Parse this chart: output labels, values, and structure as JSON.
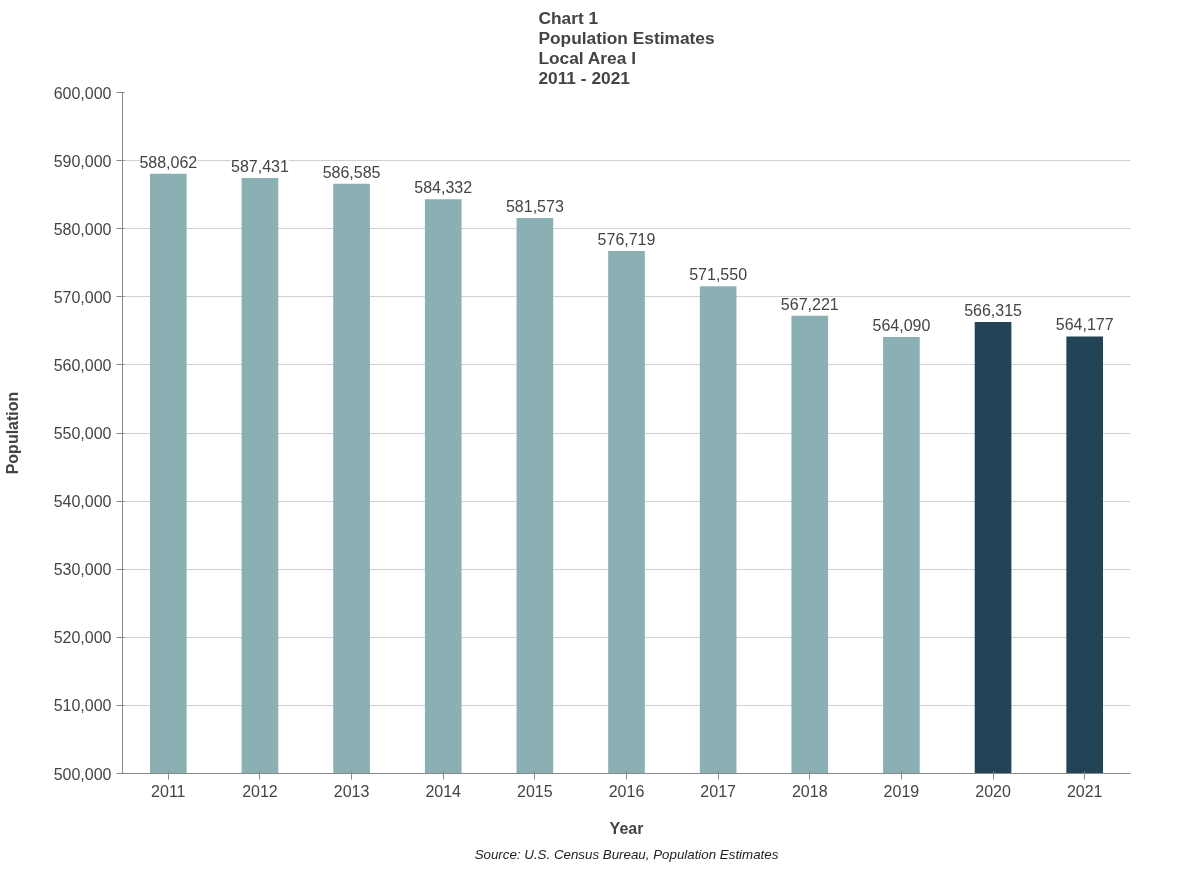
{
  "chart_data": {
    "type": "bar",
    "title": "Chart 1\nPopulation Estimates\nLocal Area I\n2011 - 2021",
    "xlabel": "Year",
    "ylabel": "Population",
    "annotations": [
      "Source: U.S. Census Bureau, Population Estimates"
    ],
    "categories": [
      "2011",
      "2012",
      "2013",
      "2014",
      "2015",
      "2016",
      "2017",
      "2018",
      "2019",
      "2020",
      "2021"
    ],
    "values": [
      588062,
      587431,
      586585,
      584332,
      581573,
      576719,
      571550,
      567221,
      564090,
      566315,
      564177
    ],
    "colors": [
      "#8ab0b4",
      "#8ab0b4",
      "#8ab0b4",
      "#8ab0b4",
      "#8ab0b4",
      "#8ab0b4",
      "#8ab0b4",
      "#8ab0b4",
      "#8ab0b4",
      "#234456",
      "#234456"
    ],
    "ylim": [
      500000,
      600000
    ],
    "yticks": [
      {
        "value": 500000,
        "label": "500,000"
      },
      {
        "value": 510000,
        "label": "510,000"
      },
      {
        "value": 520000,
        "label": "520,000"
      },
      {
        "value": 530000,
        "label": "530,000"
      },
      {
        "value": 540000,
        "label": "540,000"
      },
      {
        "value": 550000,
        "label": "550,000"
      },
      {
        "value": 560000,
        "label": "560,000"
      },
      {
        "value": 570000,
        "label": "570,000"
      },
      {
        "value": 580000,
        "label": "580,000"
      },
      {
        "value": 590000,
        "label": "590,000"
      },
      {
        "value": 600000,
        "label": "600,000"
      }
    ],
    "value_labels": [
      "588,062",
      "587,431",
      "586,585",
      "584,332",
      "581,573",
      "576,719",
      "571,550",
      "567,221",
      "564,090",
      "566,315",
      "564,177"
    ],
    "grid": "y"
  }
}
